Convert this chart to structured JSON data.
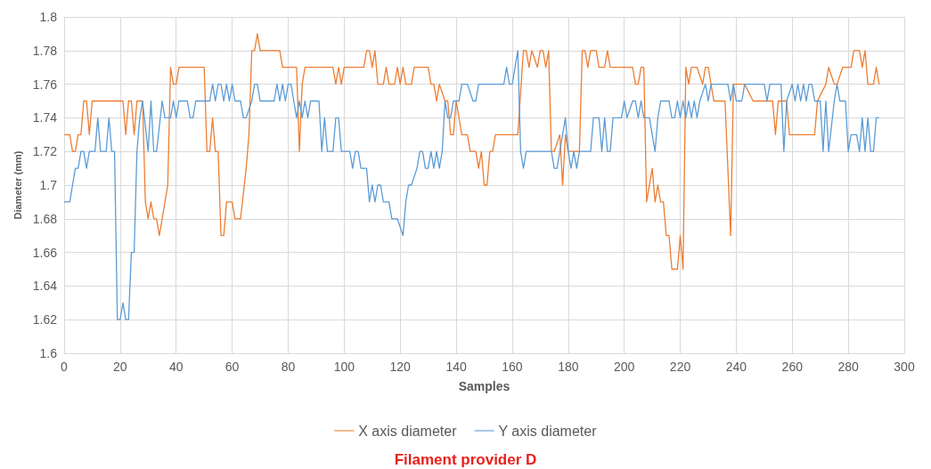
{
  "chart_data": {
    "type": "line",
    "xlabel": "Samples",
    "ylabel": "Diameter (mm)",
    "annotations": [
      "Filament provider D"
    ],
    "xlim": [
      0,
      300
    ],
    "xticks": [
      0,
      20,
      40,
      60,
      80,
      100,
      120,
      140,
      160,
      180,
      200,
      220,
      240,
      260,
      280,
      300
    ],
    "ylim": [
      1.6,
      1.8
    ],
    "yticks": [
      1.6,
      1.62,
      1.64,
      1.66,
      1.68,
      1.7,
      1.72,
      1.74,
      1.76,
      1.78,
      1.8
    ],
    "grid": true,
    "legend": "bottom",
    "marker": "none",
    "line_style": "solid",
    "series": [
      {
        "name": "X axis diameter",
        "color": "#ed7d31",
        "x": [
          0,
          2,
          3,
          4,
          5,
          6,
          7,
          8,
          9,
          10,
          21,
          22,
          23,
          24,
          25,
          26,
          28,
          29,
          30,
          31,
          32,
          33,
          34,
          35,
          37,
          38,
          39,
          40,
          41,
          50,
          51,
          52,
          53,
          54,
          55,
          56,
          57,
          58,
          60,
          61,
          63,
          65,
          66,
          67,
          68,
          69,
          70,
          77,
          78,
          83,
          84,
          85,
          86,
          96,
          97,
          98,
          99,
          100,
          107,
          108,
          109,
          110,
          111,
          112,
          114,
          115,
          116,
          118,
          119,
          120,
          121,
          122,
          124,
          125,
          130,
          131,
          132,
          133,
          134,
          136,
          137,
          138,
          139,
          140,
          142,
          144,
          145,
          147,
          148,
          149,
          150,
          151,
          152,
          153,
          154,
          162,
          164,
          165,
          166,
          167,
          169,
          170,
          171,
          172,
          173,
          174,
          175,
          177,
          178,
          179,
          180,
          184,
          185,
          186,
          187,
          188,
          190,
          191,
          193,
          194,
          195,
          203,
          204,
          205,
          206,
          207,
          208,
          210,
          211,
          212,
          213,
          214,
          215,
          216,
          217,
          219,
          220,
          221,
          222,
          223,
          224,
          226,
          228,
          229,
          230,
          232,
          236,
          238,
          239,
          242,
          243,
          246,
          253,
          254,
          255,
          258,
          259,
          268,
          269,
          272,
          273,
          275,
          276,
          278,
          281,
          282,
          284,
          285,
          286,
          287,
          289,
          290,
          291
        ],
        "values": [
          1.73,
          1.73,
          1.72,
          1.72,
          1.73,
          1.73,
          1.75,
          1.75,
          1.73,
          1.75,
          1.75,
          1.73,
          1.75,
          1.75,
          1.73,
          1.75,
          1.75,
          1.69,
          1.68,
          1.69,
          1.68,
          1.68,
          1.67,
          1.68,
          1.7,
          1.77,
          1.76,
          1.76,
          1.77,
          1.77,
          1.72,
          1.72,
          1.74,
          1.72,
          1.72,
          1.67,
          1.67,
          1.69,
          1.69,
          1.68,
          1.68,
          1.71,
          1.73,
          1.78,
          1.78,
          1.79,
          1.78,
          1.78,
          1.77,
          1.77,
          1.72,
          1.76,
          1.77,
          1.77,
          1.76,
          1.77,
          1.76,
          1.77,
          1.77,
          1.78,
          1.78,
          1.77,
          1.78,
          1.76,
          1.76,
          1.77,
          1.76,
          1.76,
          1.77,
          1.76,
          1.77,
          1.76,
          1.76,
          1.77,
          1.77,
          1.76,
          1.76,
          1.75,
          1.76,
          1.75,
          1.75,
          1.73,
          1.73,
          1.75,
          1.73,
          1.73,
          1.72,
          1.72,
          1.71,
          1.72,
          1.7,
          1.7,
          1.72,
          1.72,
          1.73,
          1.73,
          1.78,
          1.78,
          1.77,
          1.78,
          1.77,
          1.78,
          1.78,
          1.77,
          1.78,
          1.72,
          1.72,
          1.73,
          1.7,
          1.73,
          1.72,
          1.72,
          1.78,
          1.78,
          1.77,
          1.78,
          1.78,
          1.77,
          1.77,
          1.78,
          1.77,
          1.77,
          1.76,
          1.76,
          1.77,
          1.77,
          1.69,
          1.71,
          1.69,
          1.7,
          1.69,
          1.69,
          1.67,
          1.67,
          1.65,
          1.65,
          1.67,
          1.65,
          1.77,
          1.76,
          1.77,
          1.77,
          1.76,
          1.77,
          1.77,
          1.75,
          1.75,
          1.67,
          1.76,
          1.76,
          1.76,
          1.75,
          1.75,
          1.73,
          1.75,
          1.75,
          1.73,
          1.73,
          1.75,
          1.76,
          1.77,
          1.76,
          1.76,
          1.77,
          1.77,
          1.78,
          1.78,
          1.77,
          1.78,
          1.76,
          1.76,
          1.77,
          1.76
        ]
      },
      {
        "name": "Y axis diameter",
        "color": "#5b9bd5",
        "x": [
          0,
          2,
          3,
          4,
          5,
          6,
          7,
          8,
          9,
          11,
          12,
          13,
          15,
          16,
          17,
          18,
          19,
          20,
          21,
          22,
          23,
          24,
          25,
          26,
          27,
          28,
          30,
          31,
          32,
          33,
          35,
          36,
          38,
          39,
          40,
          41,
          44,
          45,
          46,
          47,
          52,
          53,
          54,
          55,
          56,
          57,
          58,
          59,
          60,
          61,
          63,
          64,
          65,
          67,
          68,
          69,
          70,
          75,
          76,
          77,
          78,
          79,
          80,
          81,
          82,
          83,
          84,
          85,
          86,
          87,
          88,
          91,
          92,
          93,
          94,
          96,
          97,
          98,
          99,
          100,
          102,
          103,
          104,
          105,
          106,
          108,
          109,
          110,
          111,
          112,
          113,
          114,
          116,
          117,
          119,
          121,
          122,
          123,
          124,
          126,
          127,
          128,
          129,
          130,
          131,
          132,
          133,
          134,
          135,
          136,
          137,
          138,
          139,
          141,
          142,
          144,
          146,
          147,
          148,
          157,
          158,
          159,
          160,
          161,
          162,
          163,
          164,
          165,
          174,
          175,
          176,
          177,
          179,
          180,
          181,
          182,
          183,
          184,
          188,
          189,
          191,
          192,
          193,
          194,
          195,
          196,
          199,
          200,
          201,
          203,
          204,
          205,
          206,
          207,
          209,
          211,
          212,
          213,
          216,
          217,
          218,
          219,
          220,
          221,
          222,
          223,
          224,
          225,
          226,
          227,
          229,
          230,
          231,
          237,
          238,
          239,
          240,
          242,
          243,
          250,
          251,
          252,
          256,
          257,
          258,
          260,
          261,
          262,
          263,
          264,
          265,
          266,
          267,
          268,
          270,
          271,
          272,
          273,
          275,
          276,
          277,
          279,
          280,
          281,
          283,
          284,
          285,
          286,
          287,
          288,
          289,
          290,
          291
        ],
        "values": [
          1.69,
          1.69,
          1.7,
          1.71,
          1.71,
          1.72,
          1.72,
          1.71,
          1.72,
          1.72,
          1.74,
          1.72,
          1.72,
          1.74,
          1.72,
          1.72,
          1.62,
          1.62,
          1.63,
          1.62,
          1.62,
          1.66,
          1.66,
          1.72,
          1.74,
          1.75,
          1.72,
          1.75,
          1.72,
          1.72,
          1.75,
          1.74,
          1.74,
          1.75,
          1.74,
          1.75,
          1.75,
          1.74,
          1.74,
          1.75,
          1.75,
          1.76,
          1.75,
          1.76,
          1.76,
          1.75,
          1.76,
          1.75,
          1.76,
          1.75,
          1.75,
          1.74,
          1.74,
          1.75,
          1.76,
          1.76,
          1.75,
          1.75,
          1.76,
          1.75,
          1.76,
          1.75,
          1.76,
          1.76,
          1.75,
          1.74,
          1.75,
          1.74,
          1.75,
          1.74,
          1.75,
          1.75,
          1.72,
          1.74,
          1.72,
          1.72,
          1.74,
          1.74,
          1.72,
          1.72,
          1.72,
          1.71,
          1.72,
          1.72,
          1.71,
          1.71,
          1.69,
          1.7,
          1.69,
          1.7,
          1.7,
          1.69,
          1.69,
          1.68,
          1.68,
          1.67,
          1.69,
          1.7,
          1.7,
          1.71,
          1.72,
          1.72,
          1.71,
          1.71,
          1.72,
          1.71,
          1.72,
          1.71,
          1.72,
          1.75,
          1.74,
          1.74,
          1.75,
          1.75,
          1.76,
          1.76,
          1.75,
          1.75,
          1.76,
          1.76,
          1.77,
          1.76,
          1.76,
          1.77,
          1.78,
          1.72,
          1.71,
          1.72,
          1.72,
          1.71,
          1.71,
          1.72,
          1.74,
          1.72,
          1.71,
          1.72,
          1.71,
          1.72,
          1.72,
          1.74,
          1.74,
          1.72,
          1.74,
          1.72,
          1.72,
          1.74,
          1.74,
          1.75,
          1.74,
          1.75,
          1.75,
          1.74,
          1.75,
          1.74,
          1.74,
          1.72,
          1.74,
          1.75,
          1.75,
          1.74,
          1.74,
          1.75,
          1.74,
          1.75,
          1.74,
          1.75,
          1.74,
          1.75,
          1.74,
          1.75,
          1.76,
          1.75,
          1.76,
          1.76,
          1.75,
          1.76,
          1.75,
          1.75,
          1.76,
          1.76,
          1.75,
          1.76,
          1.76,
          1.72,
          1.75,
          1.76,
          1.75,
          1.76,
          1.75,
          1.76,
          1.75,
          1.76,
          1.76,
          1.75,
          1.75,
          1.72,
          1.75,
          1.72,
          1.75,
          1.76,
          1.75,
          1.75,
          1.72,
          1.73,
          1.73,
          1.72,
          1.74,
          1.72,
          1.74,
          1.72,
          1.72,
          1.74,
          1.74
        ]
      }
    ]
  }
}
